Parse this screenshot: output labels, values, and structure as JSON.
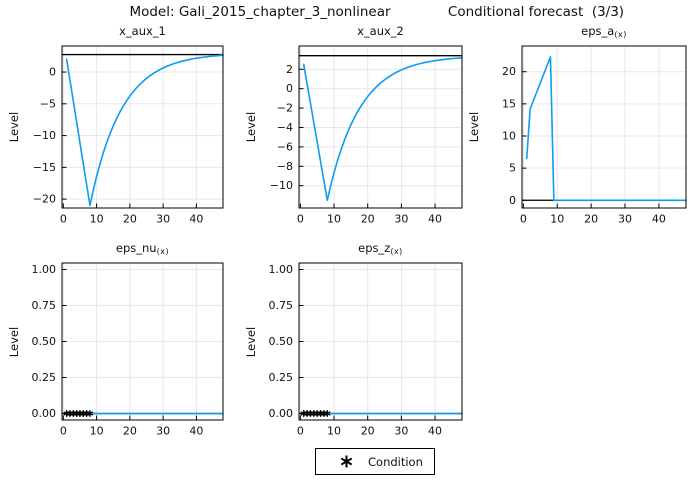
{
  "title": {
    "model": "Model: Gali_2015_chapter_3_nonlinear",
    "forecast": "Conditional forecast  (3/3)"
  },
  "legend": {
    "label": "Condition",
    "marker": "six-spoke-asterisk"
  },
  "colors": {
    "series": "#0d9cf2",
    "steady_state_line": "#000000",
    "grid": "#e7e7e7",
    "frame": "#000000",
    "marker": "#000000",
    "text": "#111111"
  },
  "chart_data": [
    {
      "id": "x_aux_1",
      "type": "line",
      "title_main": "x_aux_1",
      "title_sub": "",
      "ylabel": "Level",
      "xlim": [
        -0.4,
        48
      ],
      "ylim": [
        -21.4,
        4.1
      ],
      "xtick_vals": [
        0,
        10,
        20,
        30,
        40
      ],
      "xtick_labels": [
        "0",
        "10",
        "20",
        "30",
        "40"
      ],
      "ytick_vals": [
        0,
        -5,
        -10,
        -15,
        -20
      ],
      "ytick_labels": [
        "0",
        "−5",
        "−10",
        "−15",
        "−20"
      ],
      "hline": 2.75,
      "x": [
        1,
        2,
        3,
        4,
        5,
        6,
        7,
        8,
        9,
        10,
        11,
        12,
        13,
        14,
        15,
        16,
        17,
        18,
        19,
        20,
        21,
        22,
        23,
        24,
        25,
        26,
        27,
        28,
        29,
        30,
        31,
        32,
        33,
        34,
        35,
        36,
        37,
        38,
        39,
        40,
        41,
        42,
        43,
        44,
        45,
        46,
        47,
        48
      ],
      "y": [
        2.0,
        -1.29,
        -4.57,
        -7.86,
        -11.14,
        -14.43,
        -17.71,
        -21.0,
        -18.6,
        -16.44,
        -14.5,
        -12.75,
        -11.17,
        -9.75,
        -8.48,
        -7.33,
        -6.3,
        -5.37,
        -4.53,
        -3.78,
        -3.1,
        -2.49,
        -1.94,
        -1.45,
        -1.0,
        -0.6,
        -0.24,
        0.08,
        0.38,
        0.64,
        0.87,
        1.09,
        1.28,
        1.45,
        1.61,
        1.75,
        1.87,
        1.98,
        2.09,
        2.18,
        2.26,
        2.33,
        2.4,
        2.46,
        2.51,
        2.56,
        2.61,
        2.65
      ],
      "marker_x": [],
      "marker_y": []
    },
    {
      "id": "x_aux_2",
      "type": "line",
      "title_main": "x_aux_2",
      "title_sub": "",
      "ylabel": "Level",
      "xlim": [
        -0.4,
        48
      ],
      "ylim": [
        -12.3,
        4.4
      ],
      "xtick_vals": [
        0,
        10,
        20,
        30,
        40
      ],
      "xtick_labels": [
        "0",
        "10",
        "20",
        "30",
        "40"
      ],
      "ytick_vals": [
        2,
        0,
        -2,
        -4,
        -6,
        -8,
        -10
      ],
      "ytick_labels": [
        "2",
        "0",
        "−2",
        "−4",
        "−6",
        "−8",
        "−10"
      ],
      "hline": 3.4,
      "x": [
        1,
        2,
        3,
        4,
        5,
        6,
        7,
        8,
        9,
        10,
        11,
        12,
        13,
        14,
        15,
        16,
        17,
        18,
        19,
        20,
        21,
        22,
        23,
        24,
        25,
        26,
        27,
        28,
        29,
        30,
        31,
        32,
        33,
        34,
        35,
        36,
        37,
        38,
        39,
        40,
        41,
        42,
        43,
        44,
        45,
        46,
        47,
        48
      ],
      "y": [
        2.5,
        0.5,
        -1.5,
        -3.5,
        -5.5,
        -7.5,
        -9.5,
        -11.5,
        -10.01,
        -8.67,
        -7.46,
        -6.38,
        -5.4,
        -4.52,
        -3.73,
        -3.01,
        -2.37,
        -1.79,
        -1.28,
        -0.81,
        -0.39,
        -0.01,
        0.33,
        0.64,
        0.91,
        1.16,
        1.39,
        1.59,
        1.77,
        1.93,
        2.08,
        2.21,
        2.33,
        2.44,
        2.53,
        2.62,
        2.7,
        2.77,
        2.83,
        2.89,
        2.94,
        2.99,
        3.03,
        3.07,
        3.1,
        3.13,
        3.16,
        3.18
      ],
      "marker_x": [],
      "marker_y": []
    },
    {
      "id": "eps_a",
      "type": "line",
      "title_main": "eps_a",
      "title_sub": "(x)",
      "ylabel": "Level",
      "xlim": [
        -0.4,
        48
      ],
      "ylim": [
        -1.2,
        24.0
      ],
      "xtick_vals": [
        0,
        10,
        20,
        30,
        40
      ],
      "xtick_labels": [
        "0",
        "10",
        "20",
        "30",
        "40"
      ],
      "ytick_vals": [
        0,
        5,
        10,
        15,
        20
      ],
      "ytick_labels": [
        "0",
        "5",
        "10",
        "15",
        "20"
      ],
      "hline": 0,
      "x": [
        1,
        2,
        3,
        4,
        5,
        6,
        7,
        8,
        9,
        10,
        11,
        12,
        13,
        14,
        15,
        16,
        17,
        18,
        19,
        20,
        21,
        22,
        23,
        24,
        25,
        26,
        27,
        28,
        29,
        30,
        31,
        32,
        33,
        34,
        35,
        36,
        37,
        38,
        39,
        40,
        41,
        42,
        43,
        44,
        45,
        46,
        47,
        48
      ],
      "y": [
        6.5,
        14.2,
        15.55,
        16.9,
        18.25,
        19.6,
        20.95,
        22.3,
        0,
        0,
        0,
        0,
        0,
        0,
        0,
        0,
        0,
        0,
        0,
        0,
        0,
        0,
        0,
        0,
        0,
        0,
        0,
        0,
        0,
        0,
        0,
        0,
        0,
        0,
        0,
        0,
        0,
        0,
        0,
        0,
        0,
        0,
        0,
        0,
        0,
        0,
        0,
        0
      ],
      "marker_x": [],
      "marker_y": []
    },
    {
      "id": "eps_nu",
      "type": "line",
      "title_main": "eps_nu",
      "title_sub": "(x)",
      "ylabel": "Level",
      "xlim": [
        -0.4,
        48
      ],
      "ylim": [
        -0.045,
        1.045
      ],
      "xtick_vals": [
        0,
        10,
        20,
        30,
        40
      ],
      "xtick_labels": [
        "0",
        "10",
        "20",
        "30",
        "40"
      ],
      "ytick_vals": [
        0,
        0.25,
        0.5,
        0.75,
        1.0
      ],
      "ytick_labels": [
        "0.00",
        "0.25",
        "0.50",
        "0.75",
        "1.00"
      ],
      "hline": 0,
      "x": [
        1,
        2,
        3,
        4,
        5,
        6,
        7,
        8,
        9,
        10,
        11,
        12,
        13,
        14,
        15,
        16,
        17,
        18,
        19,
        20,
        21,
        22,
        23,
        24,
        25,
        26,
        27,
        28,
        29,
        30,
        31,
        32,
        33,
        34,
        35,
        36,
        37,
        38,
        39,
        40,
        41,
        42,
        43,
        44,
        45,
        46,
        47,
        48
      ],
      "y": [
        0,
        0,
        0,
        0,
        0,
        0,
        0,
        0,
        0,
        0,
        0,
        0,
        0,
        0,
        0,
        0,
        0,
        0,
        0,
        0,
        0,
        0,
        0,
        0,
        0,
        0,
        0,
        0,
        0,
        0,
        0,
        0,
        0,
        0,
        0,
        0,
        0,
        0,
        0,
        0,
        0,
        0,
        0,
        0,
        0,
        0,
        0,
        0
      ],
      "marker_x": [
        1,
        2,
        3,
        4,
        5,
        6,
        7,
        8
      ],
      "marker_y": [
        0,
        0,
        0,
        0,
        0,
        0,
        0,
        0
      ]
    },
    {
      "id": "eps_z",
      "type": "line",
      "title_main": "eps_z",
      "title_sub": "(x)",
      "ylabel": "Level",
      "xlim": [
        -0.4,
        48
      ],
      "ylim": [
        -0.045,
        1.045
      ],
      "xtick_vals": [
        0,
        10,
        20,
        30,
        40
      ],
      "xtick_labels": [
        "0",
        "10",
        "20",
        "30",
        "40"
      ],
      "ytick_vals": [
        0,
        0.25,
        0.5,
        0.75,
        1.0
      ],
      "ytick_labels": [
        "0.00",
        "0.25",
        "0.50",
        "0.75",
        "1.00"
      ],
      "hline": 0,
      "x": [
        1,
        2,
        3,
        4,
        5,
        6,
        7,
        8,
        9,
        10,
        11,
        12,
        13,
        14,
        15,
        16,
        17,
        18,
        19,
        20,
        21,
        22,
        23,
        24,
        25,
        26,
        27,
        28,
        29,
        30,
        31,
        32,
        33,
        34,
        35,
        36,
        37,
        38,
        39,
        40,
        41,
        42,
        43,
        44,
        45,
        46,
        47,
        48
      ],
      "y": [
        0,
        0,
        0,
        0,
        0,
        0,
        0,
        0,
        0,
        0,
        0,
        0,
        0,
        0,
        0,
        0,
        0,
        0,
        0,
        0,
        0,
        0,
        0,
        0,
        0,
        0,
        0,
        0,
        0,
        0,
        0,
        0,
        0,
        0,
        0,
        0,
        0,
        0,
        0,
        0,
        0,
        0,
        0,
        0,
        0,
        0,
        0,
        0
      ],
      "marker_x": [
        1,
        2,
        3,
        4,
        5,
        6,
        7,
        8
      ],
      "marker_y": [
        0,
        0,
        0,
        0,
        0,
        0,
        0,
        0
      ]
    }
  ]
}
